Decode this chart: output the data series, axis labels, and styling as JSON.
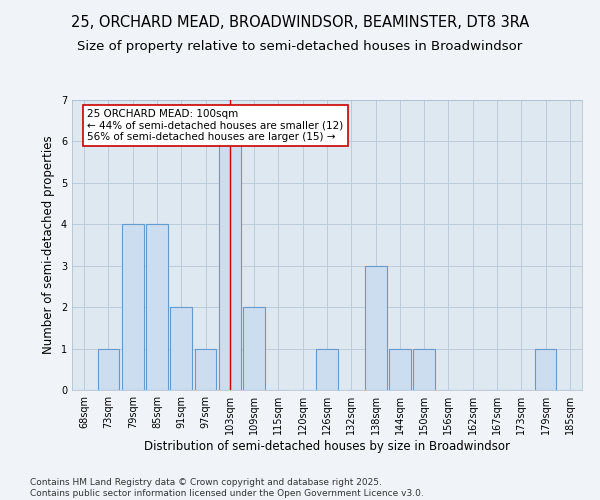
{
  "title_line1": "25, ORCHARD MEAD, BROADWINDSOR, BEAMINSTER, DT8 3RA",
  "title_line2": "Size of property relative to semi-detached houses in Broadwindsor",
  "xlabel": "Distribution of semi-detached houses by size in Broadwindsor",
  "ylabel": "Number of semi-detached properties",
  "categories": [
    "68sqm",
    "73sqm",
    "79sqm",
    "85sqm",
    "91sqm",
    "97sqm",
    "103sqm",
    "109sqm",
    "115sqm",
    "120sqm",
    "126sqm",
    "132sqm",
    "138sqm",
    "144sqm",
    "150sqm",
    "156sqm",
    "162sqm",
    "167sqm",
    "173sqm",
    "179sqm",
    "185sqm"
  ],
  "values": [
    0,
    1,
    4,
    4,
    2,
    1,
    6,
    2,
    0,
    0,
    1,
    0,
    3,
    1,
    1,
    0,
    0,
    0,
    0,
    1,
    0
  ],
  "bar_color": "#ccddf0",
  "bar_edge_color": "#6699cc",
  "highlight_index": 6,
  "highlight_line_color": "#cc0000",
  "annotation_text": "25 ORCHARD MEAD: 100sqm\n← 44% of semi-detached houses are smaller (12)\n56% of semi-detached houses are larger (15) →",
  "annotation_box_color": "#ffffff",
  "annotation_box_edge_color": "#cc0000",
  "ylim": [
    0,
    7
  ],
  "yticks": [
    0,
    1,
    2,
    3,
    4,
    5,
    6,
    7
  ],
  "grid_color": "#bbccdd",
  "bg_color": "#dde8f0",
  "fig_bg_color": "#f0f4f8",
  "footer_line1": "Contains HM Land Registry data © Crown copyright and database right 2025.",
  "footer_line2": "Contains public sector information licensed under the Open Government Licence v3.0.",
  "title_fontsize": 10.5,
  "subtitle_fontsize": 9.5,
  "axis_label_fontsize": 8.5,
  "tick_fontsize": 7,
  "annotation_fontsize": 7.5,
  "footer_fontsize": 6.5
}
